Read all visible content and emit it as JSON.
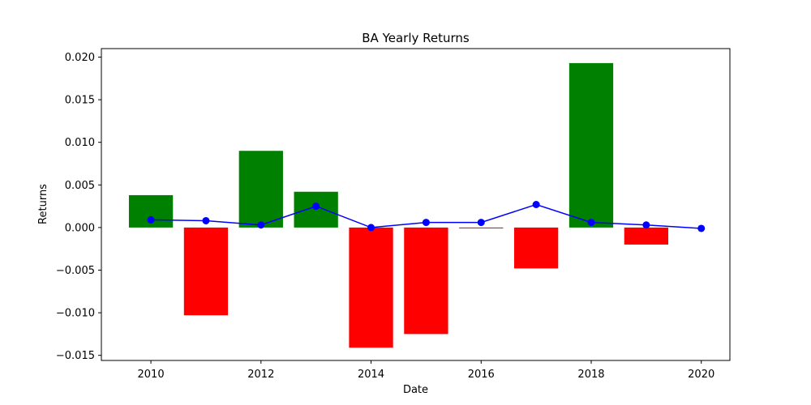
{
  "chart_data": {
    "type": "bar",
    "title": "BA Yearly Returns",
    "xlabel": "Date",
    "ylabel": "Returns",
    "xlim": [
      2009.1,
      2020.52
    ],
    "ylim": [
      -0.0156,
      0.021
    ],
    "grid": false,
    "positive_color": "#008000",
    "negative_color": "#ff0000",
    "line_color": "#0000ff",
    "x_ticks": [
      2010,
      2012,
      2014,
      2016,
      2018,
      2020
    ],
    "x_tick_labels": [
      "2010",
      "2012",
      "2014",
      "2016",
      "2018",
      "2020"
    ],
    "y_ticks": [
      -0.015,
      -0.01,
      -0.005,
      0.0,
      0.005,
      0.01,
      0.015,
      0.02
    ],
    "y_tick_labels": [
      "−0.015",
      "−0.010",
      "−0.005",
      "0.000",
      "0.005",
      "0.010",
      "0.015",
      "0.020"
    ],
    "bars": {
      "x": [
        2010,
        2011,
        2012,
        2013,
        2014,
        2015,
        2016,
        2017,
        2018,
        2019
      ],
      "values": [
        0.0038,
        -0.0103,
        0.009,
        0.0042,
        -0.0141,
        -0.0125,
        -0.0001,
        -0.0048,
        0.0193,
        -0.002
      ]
    },
    "line": {
      "x": [
        2010,
        2011,
        2012,
        2013,
        2014,
        2015,
        2016,
        2017,
        2018,
        2019,
        2020
      ],
      "values": [
        0.0009,
        0.0008,
        0.0003,
        0.0025,
        0.0,
        0.0006,
        0.0006,
        0.0027,
        0.0006,
        0.0003,
        -0.0001
      ]
    }
  }
}
